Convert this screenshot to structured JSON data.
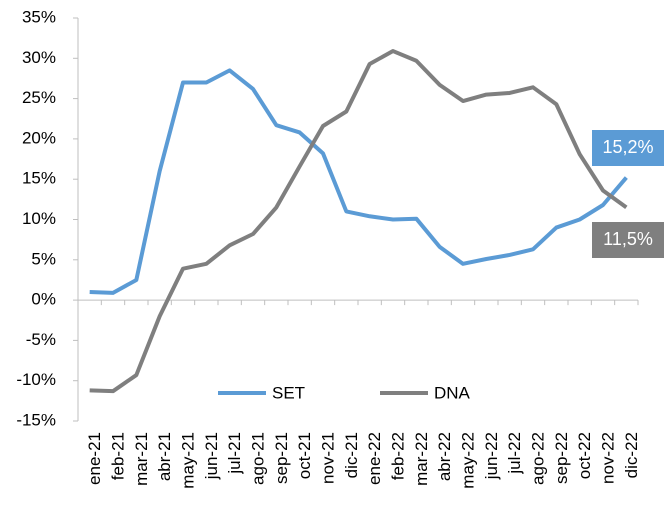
{
  "chart_data": {
    "type": "line",
    "categories": [
      "ene-21",
      "feb-21",
      "mar-21",
      "abr-21",
      "may-21",
      "jun-21",
      "jul-21",
      "ago-21",
      "sep-21",
      "oct-21",
      "nov-21",
      "dic-21",
      "ene-22",
      "feb-22",
      "mar-22",
      "abr-22",
      "may-22",
      "jun-22",
      "jul-22",
      "ago-22",
      "sep-22",
      "oct-22",
      "nov-22",
      "dic-22"
    ],
    "series": [
      {
        "name": "SET",
        "color": "#5b9bd5",
        "values": [
          1.0,
          0.9,
          2.5,
          16,
          27,
          27,
          28.5,
          26.2,
          21.7,
          20.8,
          18.2,
          11.0,
          10.4,
          10.0,
          10.1,
          6.6,
          4.5,
          5.1,
          5.6,
          6.3,
          9.0,
          10.0,
          11.8,
          15.2
        ],
        "value_labels": [
          null,
          null,
          null,
          null,
          null,
          null,
          null,
          null,
          null,
          null,
          null,
          null,
          null,
          null,
          null,
          null,
          null,
          null,
          null,
          null,
          null,
          null,
          null,
          "15,2%"
        ]
      },
      {
        "name": "DNA",
        "color": "#7f7f7f",
        "values": [
          -11.2,
          -11.3,
          -9.3,
          -2,
          3.9,
          4.5,
          6.8,
          8.2,
          11.5,
          16.6,
          21.6,
          23.4,
          29.3,
          30.9,
          29.7,
          26.7,
          24.7,
          25.5,
          25.7,
          26.4,
          24.3,
          18.1,
          13.6,
          11.5
        ],
        "value_labels": [
          null,
          null,
          null,
          null,
          null,
          null,
          null,
          null,
          null,
          null,
          null,
          null,
          null,
          null,
          null,
          null,
          null,
          null,
          null,
          null,
          null,
          null,
          null,
          "11,5%"
        ]
      }
    ],
    "ylim": [
      -15,
      35
    ],
    "yticks": [
      {
        "value": -15,
        "label": "-15%"
      },
      {
        "value": -10,
        "label": "-10%"
      },
      {
        "value": -5,
        "label": "-5%"
      },
      {
        "value": 0,
        "label": "0%"
      },
      {
        "value": 5,
        "label": "5%"
      },
      {
        "value": 10,
        "label": "10%"
      },
      {
        "value": 15,
        "label": "15%"
      },
      {
        "value": 20,
        "label": "20%"
      },
      {
        "value": 25,
        "label": "25%"
      },
      {
        "value": 30,
        "label": "30%"
      },
      {
        "value": 35,
        "label": "35%"
      }
    ],
    "legend": "lower center"
  }
}
